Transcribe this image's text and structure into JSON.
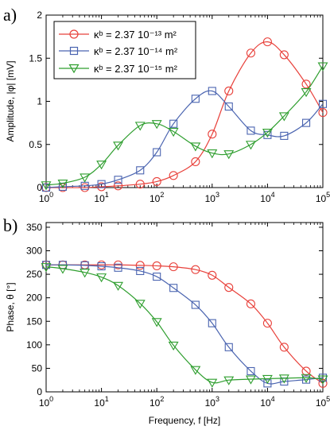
{
  "chart_data": [
    {
      "type": "line",
      "panel_label": "a)",
      "ylabel": "Amplitude, |φ| [mV]",
      "xlabel": "",
      "xscale": "log",
      "xlim": [
        1,
        100000
      ],
      "ylim": [
        0,
        2
      ],
      "xticks": [
        "10^0",
        "10^1",
        "10^2",
        "10^3",
        "10^4",
        "10^5"
      ],
      "yticks": [
        "0",
        "0.5",
        "1",
        "1.5",
        "2"
      ],
      "grid": false,
      "legend_position": "top-left",
      "series": [
        {
          "name": "κᵇ = 2.37 10⁻¹³ m²",
          "color": "#e8403a",
          "marker": "circle",
          "x": [
            1,
            2,
            5,
            10,
            20,
            50,
            100,
            200,
            500,
            1000,
            2000,
            5000,
            10000,
            20000,
            50000,
            100000
          ],
          "y": [
            0.0,
            0.0,
            0.0,
            0.01,
            0.02,
            0.04,
            0.07,
            0.14,
            0.3,
            0.62,
            1.12,
            1.56,
            1.69,
            1.54,
            1.2,
            0.87
          ]
        },
        {
          "name": "κᵇ = 2.37 10⁻¹⁴ m²",
          "color": "#4a64b0",
          "marker": "square",
          "x": [
            1,
            2,
            5,
            10,
            20,
            50,
            100,
            200,
            500,
            1000,
            2000,
            5000,
            10000,
            20000,
            50000,
            100000
          ],
          "y": [
            0.0,
            0.01,
            0.02,
            0.04,
            0.09,
            0.2,
            0.41,
            0.74,
            1.03,
            1.12,
            0.94,
            0.66,
            0.61,
            0.6,
            0.75,
            0.97
          ]
        },
        {
          "name": "κᵇ = 2.37 10⁻¹⁵ m²",
          "color": "#2e9e2e",
          "marker": "triangle-down",
          "x": [
            1,
            2,
            5,
            10,
            20,
            50,
            100,
            200,
            500,
            1000,
            2000,
            5000,
            10000,
            20000,
            50000,
            100000
          ],
          "y": [
            0.03,
            0.05,
            0.12,
            0.27,
            0.49,
            0.72,
            0.74,
            0.65,
            0.48,
            0.4,
            0.39,
            0.5,
            0.64,
            0.83,
            1.11,
            1.41
          ]
        }
      ]
    },
    {
      "type": "line",
      "panel_label": "b)",
      "ylabel": "Phase, θ [°]",
      "xlabel": "Frequency, f [Hz]",
      "xscale": "log",
      "xlim": [
        1,
        100000
      ],
      "ylim": [
        0,
        360
      ],
      "xticks": [
        "10^0",
        "10^1",
        "10^2",
        "10^3",
        "10^4",
        "10^5"
      ],
      "yticks": [
        "0",
        "50",
        "100",
        "150",
        "200",
        "250",
        "300",
        "350"
      ],
      "grid": false,
      "series": [
        {
          "color": "#e8403a",
          "marker": "circle",
          "x": [
            1,
            2,
            5,
            10,
            20,
            50,
            100,
            200,
            500,
            1000,
            2000,
            5000,
            10000,
            20000,
            50000,
            100000
          ],
          "y": [
            270,
            270,
            270,
            270,
            270,
            269,
            268,
            266,
            260,
            248,
            222,
            187,
            146,
            95,
            44,
            18
          ]
        },
        {
          "color": "#4a64b0",
          "marker": "square",
          "x": [
            1,
            2,
            5,
            10,
            20,
            50,
            100,
            200,
            500,
            1000,
            2000,
            5000,
            10000,
            20000,
            50000,
            100000
          ],
          "y": [
            270,
            270,
            269,
            267,
            264,
            257,
            245,
            221,
            185,
            146,
            95,
            44,
            18,
            22,
            26,
            30
          ]
        },
        {
          "color": "#2e9e2e",
          "marker": "triangle-down",
          "x": [
            1,
            2,
            5,
            10,
            20,
            50,
            100,
            200,
            500,
            1000,
            2000,
            5000,
            10000,
            20000,
            50000,
            100000
          ],
          "y": [
            266,
            262,
            254,
            244,
            226,
            188,
            149,
            99,
            47,
            20,
            25,
            27,
            28,
            29,
            30,
            27
          ]
        }
      ]
    }
  ]
}
